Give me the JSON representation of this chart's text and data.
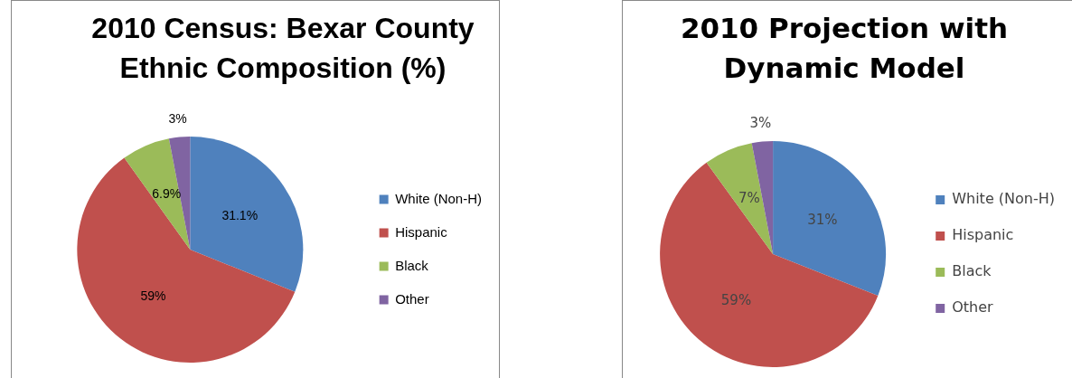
{
  "chart_data": [
    {
      "type": "pie",
      "title": "2010 Census: Bexar County Ethnic Composition (%)",
      "categories": [
        "White (Non-H)",
        "Hispanic",
        "Black",
        "Other"
      ],
      "values": [
        31.1,
        59,
        6.9,
        3
      ],
      "colors": [
        "#4f81bd",
        "#c0504d",
        "#9bbb59",
        "#8064a2"
      ],
      "value_labels": [
        "31.1%",
        "59%",
        "6.9%",
        "3%"
      ],
      "legend": "right"
    },
    {
      "type": "pie",
      "title": "2010 Projection with Dynamic Model",
      "categories": [
        "White (Non-H)",
        "Hispanic",
        "Black",
        "Other"
      ],
      "values": [
        31,
        59,
        7,
        3
      ],
      "colors": [
        "#4f81bd",
        "#c0504d",
        "#9bbb59",
        "#8064a2"
      ],
      "value_labels": [
        "31%",
        "59%",
        "7%",
        "3%"
      ],
      "legend": "right"
    }
  ]
}
